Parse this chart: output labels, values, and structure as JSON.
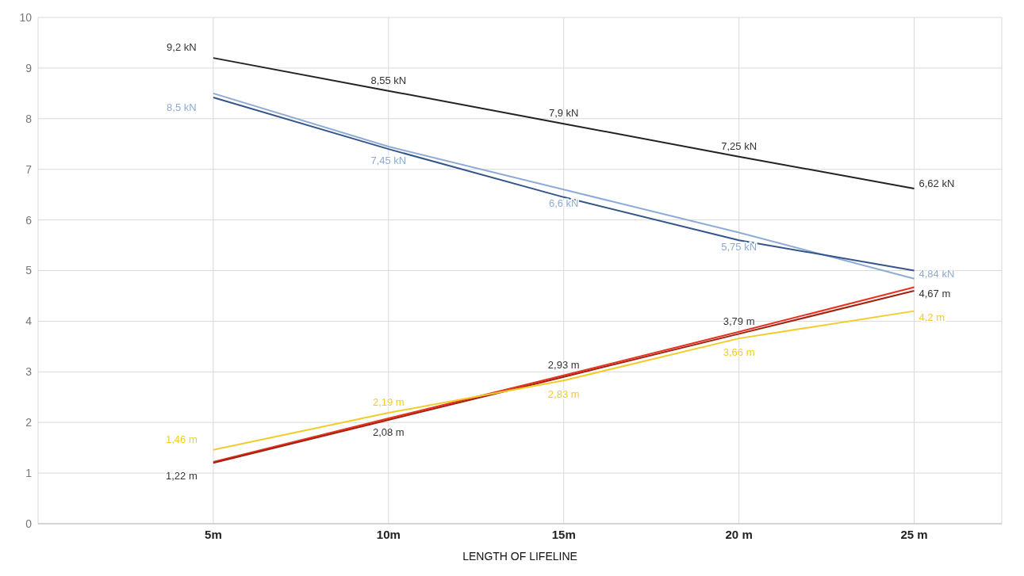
{
  "chart_data": {
    "type": "line",
    "xlabel": "LENGTH OF LIFELINE",
    "categories": [
      "5m",
      "10m",
      "15m",
      "20 m",
      "25 m"
    ],
    "series": [
      {
        "color": "#222222",
        "values": [
          9.2,
          8.55,
          7.9,
          7.25,
          6.62
        ],
        "value_labels": [
          "9,2 kN",
          "8,55 kN",
          "7,9 kN",
          "7,25 kN",
          "6,62 kN"
        ]
      },
      {
        "color": "#8eaad6",
        "values": [
          8.5,
          7.45,
          6.6,
          5.75,
          4.84
        ],
        "value_labels": [
          "8,5 kN",
          "7,45 kN",
          "6,6 kN",
          "5,75 kN",
          "4,84 kN"
        ]
      },
      {
        "color": "#34558a",
        "values": [
          8.42,
          7.4,
          6.45,
          5.6,
          5.0
        ]
      },
      {
        "color": "#e8321e",
        "values": [
          1.22,
          2.08,
          2.93,
          3.79,
          4.67
        ],
        "value_labels": [
          "1,22 m",
          "2,08 m",
          "2,93 m",
          "3,79 m",
          "4,67 m"
        ]
      },
      {
        "color": "#a3200f",
        "values": [
          1.2,
          2.05,
          2.9,
          3.75,
          4.6
        ]
      },
      {
        "color": "#f2cc2a",
        "values": [
          1.46,
          2.19,
          2.83,
          3.66,
          4.2
        ],
        "value_labels": [
          "1,46 m",
          "2,19 m",
          "2,83 m",
          "3,66 m",
          "4,2 m"
        ]
      }
    ],
    "ylim": [
      0,
      10
    ],
    "yticks": [
      0,
      1,
      2,
      3,
      4,
      5,
      6,
      7,
      8,
      9,
      10
    ],
    "grid": true,
    "marker": "none",
    "line_style": "solid"
  }
}
